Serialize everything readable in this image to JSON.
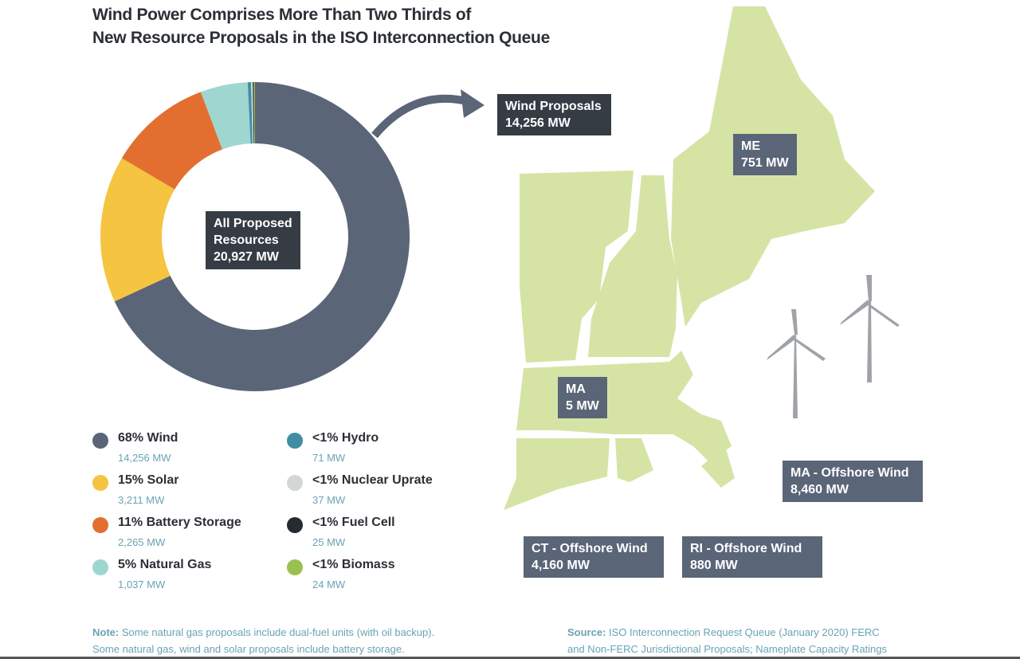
{
  "title_lines": [
    "Wind Power Comprises More Than Two Thirds of",
    "New Resource Proposals in the ISO Interconnection Queue"
  ],
  "chart_data": {
    "type": "pie",
    "title": "Wind Power Comprises More Than Two Thirds of New Resource Proposals in the ISO Interconnection Queue",
    "center_label": [
      "All Proposed",
      "Resources",
      "20,927 MW"
    ],
    "total_mw": 20927,
    "slices": [
      {
        "name": "Wind",
        "pct_label": "68%",
        "value": 14256,
        "value_label": "14,256 MW",
        "color": "#5b6578"
      },
      {
        "name": "Solar",
        "pct_label": "15%",
        "value": 3211,
        "value_label": "3,211 MW",
        "color": "#f5c440"
      },
      {
        "name": "Battery Storage",
        "pct_label": "11%",
        "value": 2265,
        "value_label": "2,265 MW",
        "color": "#e26f2f"
      },
      {
        "name": "Natural Gas",
        "pct_label": "5%",
        "value": 1037,
        "value_label": "1,037 MW",
        "color": "#9fd6d0"
      },
      {
        "name": "Hydro",
        "pct_label": "<1%",
        "value": 71,
        "value_label": "71 MW",
        "color": "#3f8ea4"
      },
      {
        "name": "Nuclear Uprate",
        "pct_label": "<1%",
        "value": 37,
        "value_label": "37 MW",
        "color": "#d2d6d6"
      },
      {
        "name": "Fuel Cell",
        "pct_label": "<1%",
        "value": 25,
        "value_label": "25 MW",
        "color": "#262b31"
      },
      {
        "name": "Biomass",
        "pct_label": "<1%",
        "value": 24,
        "value_label": "24 MW",
        "color": "#9ac050"
      }
    ]
  },
  "map": {
    "wind_proposals": [
      "Wind Proposals",
      "14,256 MW"
    ],
    "me": [
      "ME",
      "751 MW"
    ],
    "ma": [
      "MA",
      "5 MW"
    ],
    "ma_offshore": [
      "MA - Offshore Wind",
      "8,460 MW"
    ],
    "ct_offshore": [
      "CT - Offshore Wind",
      "4,160 MW"
    ],
    "ri_offshore": [
      "RI - Offshore Wind",
      "880 MW"
    ],
    "land_color": "#d5e4a5"
  },
  "note": {
    "label": "Note:",
    "text": " Some natural gas proposals include dual-fuel units (with oil backup).",
    "line2": "Some natural gas, wind and solar proposals include battery storage."
  },
  "source": {
    "label": "Source:",
    "text": " ISO Interconnection Request Queue (January 2020) FERC",
    "line2": "and Non-FERC Jurisdictional Proposals; Nameplate Capacity Ratings"
  }
}
